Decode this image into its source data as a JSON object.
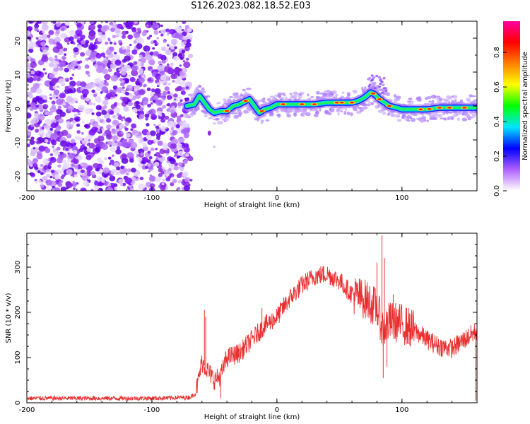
{
  "title": "S126.2023.082.18.52.E03",
  "chart_data": [
    {
      "type": "heatmap",
      "xlabel": "Height of straight line (km)",
      "ylabel": "Frequency (Hz)",
      "xlim": [
        -200,
        160
      ],
      "ylim": [
        -25,
        25
      ],
      "xticks": [
        -200,
        -100,
        0,
        100
      ],
      "yticks": [
        -20,
        -10,
        0,
        10,
        20
      ],
      "colorbar": {
        "label": "Normalized spectral amplitude",
        "range": [
          0,
          1
        ],
        "ticks": [
          "0.0",
          "0.2",
          "0.4",
          "0.6",
          "0.8"
        ],
        "colors": [
          "#ffffff",
          "#b060ff",
          "#0000ff",
          "#00e5ff",
          "#00ff00",
          "#ffff00",
          "#ff8000",
          "#ff0000",
          "#ff00a0"
        ]
      },
      "noise_region_x": [
        -200,
        -72
      ],
      "ridge": {
        "x": [
          -72,
          -66,
          -62,
          -58,
          -54,
          -50,
          -45,
          -40,
          -35,
          -30,
          -25,
          -22,
          -18,
          -14,
          -10,
          -5,
          0,
          10,
          20,
          30,
          40,
          50,
          60,
          65,
          70,
          75,
          78,
          82,
          86,
          90,
          96,
          100,
          110,
          120,
          130,
          140,
          150,
          160
        ],
        "y": [
          0,
          0.5,
          3,
          1,
          -1,
          -2,
          -1.5,
          -1.5,
          0,
          0.5,
          1.5,
          2,
          0,
          -2,
          -1,
          -0.5,
          0.5,
          0.5,
          0.5,
          0.5,
          1,
          1,
          1,
          1.5,
          2.5,
          4,
          3.5,
          2,
          1,
          0,
          -0.5,
          -1,
          -1,
          -1,
          -0.5,
          -0.5,
          -0.5,
          -0.5
        ]
      }
    },
    {
      "type": "line",
      "xlabel": "Height of straight line (km)",
      "ylabel": "SNR (10 * v/v)",
      "xlim": [
        -200,
        160
      ],
      "ylim": [
        0,
        375
      ],
      "xticks": [
        -200,
        -100,
        0,
        100
      ],
      "yticks": [
        0,
        100,
        200,
        300
      ],
      "color": "#e83030",
      "envelope": {
        "x": [
          -200,
          -150,
          -100,
          -70,
          -65,
          -60,
          -55,
          -50,
          -45,
          -40,
          -30,
          -20,
          -10,
          0,
          10,
          20,
          30,
          40,
          50,
          60,
          70,
          80,
          85,
          90,
          100,
          110,
          120,
          130,
          140,
          150,
          160
        ],
        "y": [
          10,
          10,
          10,
          12,
          20,
          90,
          70,
          50,
          60,
          100,
          110,
          140,
          170,
          190,
          230,
          260,
          280,
          285,
          270,
          240,
          230,
          210,
          160,
          180,
          175,
          160,
          140,
          125,
          120,
          140,
          160
        ]
      },
      "spikes": [
        {
          "x": -58,
          "y": 205
        },
        {
          "x": -57,
          "y": 190
        },
        {
          "x": -45,
          "y": 10
        },
        {
          "x": -12,
          "y": 210
        },
        {
          "x": 80,
          "y": 310
        },
        {
          "x": 84,
          "y": 370
        },
        {
          "x": 85,
          "y": 55
        },
        {
          "x": 86,
          "y": 320
        },
        {
          "x": 88,
          "y": 80
        },
        {
          "x": 93,
          "y": 240
        },
        {
          "x": 159,
          "y": 5
        }
      ]
    }
  ]
}
